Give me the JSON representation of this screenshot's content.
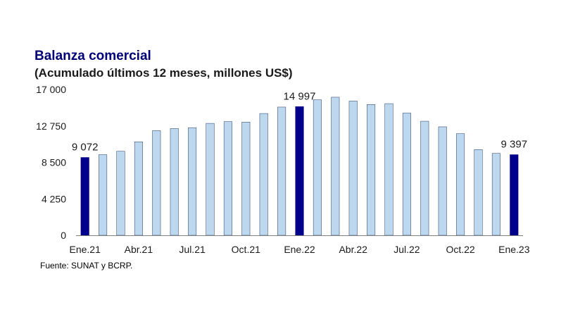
{
  "chart_data": {
    "type": "bar",
    "title": "Balanza comercial",
    "subtitle": "(Acumulado últimos 12 meses, millones US$)",
    "source": "Fuente: SUNAT y BCRP.",
    "ylim": [
      0,
      17000
    ],
    "yticks": [
      0,
      4250,
      8500,
      12750,
      17000
    ],
    "ytick_labels": [
      "0",
      "4 250",
      "8 500",
      "12 750",
      "17 000"
    ],
    "categories": [
      "Ene.21",
      "Feb.21",
      "Mar.21",
      "Abr.21",
      "May.21",
      "Jun.21",
      "Jul.21",
      "Ago.21",
      "Sep.21",
      "Oct.21",
      "Nov.21",
      "Dic.21",
      "Ene.22",
      "Feb.22",
      "Mar.22",
      "Abr.22",
      "May.22",
      "Jun.22",
      "Jul.22",
      "Ago.22",
      "Sep.22",
      "Oct.22",
      "Nov.22",
      "Dic.22",
      "Ene.23"
    ],
    "xtick_labels": [
      "Ene.21",
      "",
      "",
      "Abr.21",
      "",
      "",
      "Jul.21",
      "",
      "",
      "Oct.21",
      "",
      "",
      "Ene.22",
      "",
      "",
      "Abr.22",
      "",
      "",
      "Jul.22",
      "",
      "",
      "Oct.22",
      "",
      "",
      "Ene.23"
    ],
    "values": [
      9072,
      9400,
      9800,
      10900,
      12200,
      12450,
      12550,
      13050,
      13250,
      13200,
      14200,
      14950,
      14997,
      15800,
      16100,
      15650,
      15250,
      15350,
      14250,
      13300,
      12650,
      11850,
      10000,
      9550,
      9397
    ],
    "highlighted": [
      0,
      12,
      24
    ],
    "data_labels": [
      {
        "index": 0,
        "text": "9 072"
      },
      {
        "index": 12,
        "text": "14 997"
      },
      {
        "index": 24,
        "text": "9 397"
      }
    ],
    "grid": false,
    "colors": {
      "bar": "#bdd7ee",
      "bar_edge": "#1f3864",
      "highlight": "#00008b",
      "title": "#00007a",
      "axis": "#808080"
    }
  }
}
